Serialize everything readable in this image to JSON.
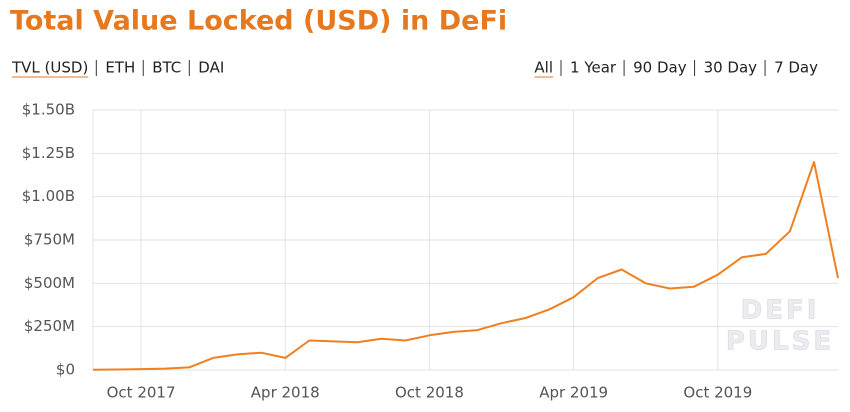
{
  "header": {
    "title": "Total Value Locked (USD) in DeFi"
  },
  "nav": {
    "metrics": [
      "TVL (USD)",
      "ETH",
      "BTC",
      "DAI"
    ],
    "selected_metric": 0,
    "ranges": [
      "All",
      "1 Year",
      "90 Day",
      "30 Day",
      "7 Day"
    ],
    "selected_range": 0,
    "active_color": "#e8781e"
  },
  "watermark": [
    "DEFI",
    "PULSE"
  ],
  "chart_data": {
    "type": "line",
    "x": [
      "2017-08",
      "2017-09",
      "2017-10",
      "2017-11",
      "2017-12",
      "2018-01",
      "2018-02",
      "2018-03",
      "2018-04",
      "2018-05",
      "2018-06",
      "2018-07",
      "2018-08",
      "2018-09",
      "2018-10",
      "2018-11",
      "2018-12",
      "2019-01",
      "2019-02",
      "2019-03",
      "2019-04",
      "2019-05",
      "2019-06",
      "2019-07",
      "2019-08",
      "2019-09",
      "2019-10",
      "2019-11",
      "2019-12",
      "2020-01",
      "2020-02",
      "2020-03"
    ],
    "series": [
      {
        "name": "TVL (USD)",
        "color": "#f0801f",
        "values": [
          2000000,
          3000000,
          5000000,
          8000000,
          15000000,
          70000000,
          90000000,
          100000000,
          70000000,
          170000000,
          165000000,
          160000000,
          180000000,
          170000000,
          200000000,
          220000000,
          230000000,
          270000000,
          300000000,
          350000000,
          420000000,
          530000000,
          580000000,
          500000000,
          470000000,
          480000000,
          550000000,
          650000000,
          670000000,
          800000000,
          1200000000,
          530000000
        ]
      }
    ],
    "xlim": [
      "2017-08",
      "2020-03"
    ],
    "xticks": [
      {
        "value": "2017-10",
        "label": "Oct 2017"
      },
      {
        "value": "2018-04",
        "label": "Apr 2018"
      },
      {
        "value": "2018-10",
        "label": "Oct 2018"
      },
      {
        "value": "2019-04",
        "label": "Apr 2019"
      },
      {
        "value": "2019-10",
        "label": "Oct 2019"
      }
    ],
    "ylim": [
      0,
      1500000000
    ],
    "yticks": [
      {
        "value": 0,
        "label": "$0"
      },
      {
        "value": 250000000,
        "label": "$250M"
      },
      {
        "value": 500000000,
        "label": "$500M"
      },
      {
        "value": 750000000,
        "label": "$750M"
      },
      {
        "value": 1000000000,
        "label": "$1.00B"
      },
      {
        "value": 1250000000,
        "label": "$1.25B"
      },
      {
        "value": 1500000000,
        "label": "$1.50B"
      }
    ],
    "grid": true
  }
}
